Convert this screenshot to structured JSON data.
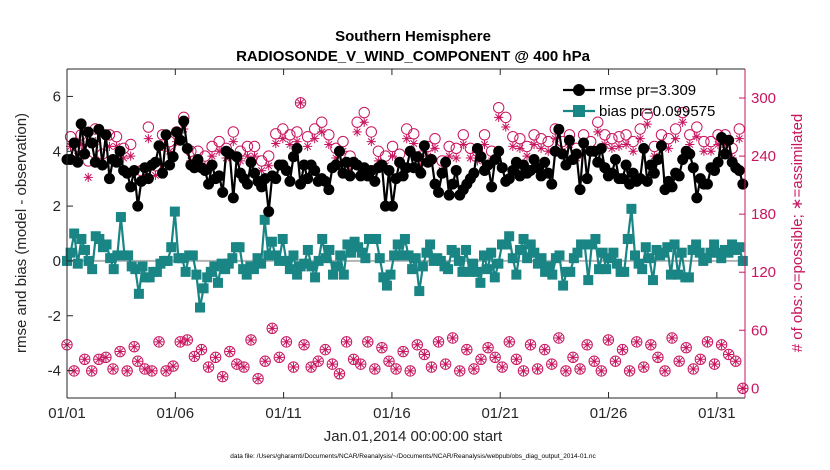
{
  "chart_data": {
    "type": "line",
    "title": "Southern Hemisphere",
    "subtitle": "RADIOSONDE_V_WIND_COMPONENT @ 400 hPa",
    "xlabel": "Jan.01,2014 00:00:00 start",
    "ylabel": "rmse and bias (model - observation)",
    "ylabel_right": "# of obs: o=possible; ∗=assimilated",
    "footnote": "data file: /Users/gharamti/Documents/NCAR/Reanalysis/~/Documents/NCAR/Reanalysis/webpub/obs_diag_output_2014-01.nc",
    "x_ticks": [
      {
        "day": 1,
        "label": "01/01"
      },
      {
        "day": 6,
        "label": "01/06"
      },
      {
        "day": 11,
        "label": "01/11"
      },
      {
        "day": 16,
        "label": "01/16"
      },
      {
        "day": 21,
        "label": "01/21"
      },
      {
        "day": 26,
        "label": "01/26"
      },
      {
        "day": 31,
        "label": "01/31"
      }
    ],
    "xlim": [
      1,
      32.3
    ],
    "ylim": [
      -5,
      7
    ],
    "y_ticks": [
      "-4",
      "-2",
      "0",
      "2",
      "4",
      "6"
    ],
    "ylim_right": [
      -10,
      330
    ],
    "y_ticks_right": [
      "0",
      "60",
      "120",
      "180",
      "240",
      "300"
    ],
    "grid": false,
    "legend_position": "top-right",
    "colors": {
      "rmse": "#000000",
      "bias": "#1a8585",
      "obs": "#c8155f",
      "zero_line": "#b3b3b3"
    },
    "series": [
      {
        "name": "rmse pr=3.309",
        "key": "rmse",
        "marker": "circle",
        "values": [
          3.7,
          3.7,
          4.3,
          3.6,
          5.0,
          3.9,
          4.7,
          4.3,
          3.6,
          4.8,
          3.5,
          4.6,
          3.0,
          3.7,
          3.6,
          4.0,
          3.3,
          3.2,
          2.7,
          3.3,
          2.0,
          2.9,
          3.4,
          3.0,
          3.5,
          3.6,
          4.2,
          3.2,
          4.6,
          3.5,
          3.8,
          4.7,
          4.4,
          5.1,
          4.1,
          3.5,
          3.4,
          3.7,
          3.4,
          3.3,
          2.8,
          3.5,
          3.0,
          3.1,
          2.5,
          4.0,
          3.9,
          2.3,
          3.8,
          3.2,
          3.0,
          2.8,
          3.6,
          3.2,
          2.9,
          2.7,
          3.0,
          1.8,
          3.1,
          3.0,
          3.5,
          3.5,
          3.3,
          2.9,
          3.8,
          4.1,
          2.8,
          3.5,
          3.0,
          3.5,
          3.3,
          2.9,
          3.0,
          2.9,
          2.6,
          3.4,
          3.5,
          4.0,
          3.2,
          3.6,
          3.1,
          3.6,
          3.5,
          3.1,
          3.4,
          3.1,
          3.3,
          2.9,
          3.4,
          3.5,
          2.0,
          3.3,
          2.0,
          3.0,
          3.6,
          3.1,
          3.4,
          4.0,
          3.4,
          3.8,
          3.2,
          4.2,
          3.6,
          3.7,
          2.8,
          2.5,
          3.2,
          3.6,
          2.4,
          2.8,
          3.3,
          2.4,
          2.6,
          2.8,
          3.0,
          3.2,
          4.1,
          3.8,
          3.3,
          3.5,
          2.7,
          3.7,
          4.0,
          3.4,
          2.9,
          3.0,
          3.3,
          3.6,
          3.1,
          3.5,
          3.2,
          3.3,
          3.7,
          3.4,
          3.1,
          3.6,
          3.2,
          2.8,
          4.0,
          4.8,
          3.9,
          3.5,
          4.4,
          3.7,
          3.9,
          2.6,
          4.3,
          3.0,
          4.0,
          4.0,
          3.6,
          4.1,
          3.4,
          3.1,
          3.2,
          3.7,
          3.0,
          3.0,
          3.5,
          2.8,
          3.2,
          2.9,
          3.0,
          4.1,
          2.9,
          3.5,
          3.2,
          3.7,
          4.2,
          2.6,
          2.9,
          2.7,
          3.2,
          3.1,
          3.7,
          4.0,
          3.9,
          3.4,
          2.3,
          3.0,
          2.8,
          2.8,
          3.4,
          3.3,
          3.6,
          4.5,
          3.9,
          4.4,
          3.6,
          3.4,
          3.3,
          2.8
        ]
      },
      {
        "name": "bias pr=0.099575",
        "key": "bias",
        "marker": "square",
        "values": [
          0.0,
          0.3,
          1.0,
          -0.1,
          0.8,
          0.4,
          0.0,
          -0.3,
          0.9,
          0.8,
          0.5,
          0.6,
          0.1,
          -0.3,
          0.2,
          1.6,
          0.2,
          0.2,
          -0.2,
          -0.3,
          -1.2,
          -0.2,
          -0.6,
          -0.6,
          -0.4,
          -0.4,
          -0.1,
          0.0,
          0.0,
          0.5,
          1.8,
          0.1,
          0.1,
          -0.4,
          0.2,
          0.2,
          -0.5,
          -1.7,
          -1.0,
          -0.6,
          -0.4,
          -0.2,
          -0.8,
          -0.1,
          -0.3,
          -0.1,
          0.1,
          0.5,
          0.5,
          -0.3,
          -0.5,
          -0.2,
          -0.3,
          0.1,
          -0.1,
          1.5,
          0.2,
          0.7,
          0.2,
          0.0,
          0.8,
          0.0,
          -0.3,
          0.2,
          -0.5,
          -0.2,
          -0.1,
          0.4,
          -0.2,
          -0.6,
          0.0,
          0.8,
          0.1,
          0.4,
          -0.5,
          -0.2,
          0.2,
          -0.5,
          0.6,
          0.3,
          0.7,
          0.5,
          0.3,
          0.1,
          0.8,
          0.8,
          0.8,
          0.1,
          -0.6,
          -0.9,
          -0.5,
          0.2,
          0.6,
          0.2,
          0.8,
          0.2,
          -0.3,
          0.1,
          -1.1,
          -0.2,
          0.3,
          0.6,
          0.0,
          0.1,
          0.0,
          -0.2,
          -0.3,
          0.4,
          0.3,
          0.0,
          -0.4,
          0.4,
          -0.4,
          -0.1,
          -0.4,
          -0.8,
          0.2,
          -0.3,
          0.3,
          -0.6,
          -0.1,
          0.6,
          0.6,
          0.9,
          0.1,
          -0.5,
          0.4,
          0.8,
          0.1,
          0.6,
          0.3,
          -0.1,
          0.1,
          -0.4,
          -0.2,
          -0.5,
          0.1,
          0.2,
          -0.9,
          -0.4,
          -0.4,
          0.1,
          0.3,
          0.6,
          0.6,
          -0.7,
          0.6,
          0.8,
          -0.3,
          0.3,
          -0.3,
          0.1,
          0.3,
          -0.1,
          -0.4,
          -0.4,
          0.8,
          1.9,
          0.2,
          -0.1,
          -0.3,
          0.5,
          0.1,
          -0.7,
          0.4,
          0.2,
          0.3,
          0.5,
          -0.5,
          0.6,
          -0.5,
          0.3,
          -0.6,
          -0.6,
          0.4,
          0.6,
          0.3,
          0.0,
          0.1,
          0.3,
          0.6,
          0.3,
          0.1,
          0.4,
          0.3,
          0.6,
          0.4,
          0.5,
          0.0
        ]
      },
      {
        "name": "obs possible",
        "key": "obs_possible",
        "marker": "open-circle",
        "axis": "right",
        "values": [
          45,
          260,
          18,
          250,
          262,
          30,
          235,
          18,
          268,
          30,
          242,
          32,
          262,
          20,
          260,
          38,
          248,
          18,
          252,
          43,
          28,
          225,
          20,
          270,
          18,
          230,
          48,
          262,
          18,
          255,
          23,
          265,
          48,
          280,
          50,
          245,
          33,
          245,
          40,
          240,
          22,
          250,
          32,
          255,
          12,
          248,
          38,
          265,
          25,
          245,
          22,
          250,
          50,
          250,
          10,
          235,
          28,
          240,
          62,
          263,
          32,
          268,
          48,
          262,
          22,
          265,
          295,
          45,
          260,
          22,
          268,
          28,
          275,
          40,
          262,
          25,
          248,
          15,
          255,
          48,
          240,
          30,
          275,
          25,
          285,
          48,
          265,
          20,
          245,
          42,
          240,
          28,
          250,
          20,
          242,
          38,
          268,
          18,
          263,
          45,
          240,
          35,
          250,
          22,
          258,
          48,
          235,
          25,
          250,
          52,
          248,
          18,
          262,
          40,
          248,
          20,
          245,
          30,
          262,
          42,
          245,
          32,
          290,
          22,
          280,
          48,
          260,
          30,
          258,
          18,
          250,
          45,
          262,
          20,
          258,
          40,
          255,
          25,
          268,
          52,
          255,
          18,
          262,
          32,
          248,
          20,
          262,
          45,
          255,
          28,
          275,
          18,
          262,
          50,
          258,
          28,
          260,
          40,
          262,
          18,
          255,
          48,
          268,
          22,
          283,
          45,
          250,
          32,
          262,
          18,
          258,
          52,
          268,
          28,
          285,
          42,
          262,
          20,
          270,
          30,
          255,
          48,
          255,
          25,
          262,
          45,
          262,
          35,
          248,
          28,
          268,
          0
        ]
      },
      {
        "name": "obs assimilated",
        "key": "obs_assimilated",
        "marker": "asterisk",
        "axis": "right",
        "values": [
          45,
          250,
          18,
          240,
          252,
          30,
          218,
          18,
          255,
          30,
          232,
          32,
          250,
          20,
          250,
          38,
          238,
          18,
          240,
          43,
          28,
          215,
          20,
          258,
          18,
          220,
          48,
          250,
          18,
          245,
          23,
          255,
          48,
          268,
          50,
          235,
          33,
          235,
          40,
          230,
          22,
          240,
          32,
          245,
          12,
          238,
          38,
          255,
          25,
          235,
          22,
          240,
          50,
          240,
          10,
          225,
          28,
          230,
          62,
          253,
          32,
          258,
          48,
          252,
          22,
          255,
          295,
          45,
          250,
          22,
          258,
          28,
          265,
          40,
          252,
          25,
          238,
          15,
          245,
          48,
          230,
          30,
          265,
          25,
          275,
          48,
          255,
          20,
          235,
          42,
          230,
          28,
          240,
          20,
          232,
          38,
          258,
          18,
          253,
          45,
          230,
          35,
          240,
          22,
          248,
          48,
          225,
          25,
          240,
          52,
          238,
          18,
          252,
          40,
          238,
          20,
          235,
          30,
          252,
          42,
          235,
          32,
          280,
          22,
          270,
          48,
          250,
          30,
          248,
          18,
          240,
          45,
          252,
          20,
          248,
          40,
          245,
          25,
          258,
          52,
          245,
          18,
          252,
          32,
          238,
          20,
          252,
          45,
          245,
          28,
          265,
          18,
          252,
          50,
          248,
          28,
          250,
          40,
          252,
          18,
          245,
          48,
          258,
          22,
          273,
          45,
          240,
          32,
          252,
          18,
          248,
          52,
          258,
          28,
          275,
          42,
          252,
          20,
          260,
          30,
          245,
          48,
          245,
          25,
          252,
          45,
          252,
          35,
          238,
          28,
          258,
          0
        ]
      }
    ]
  }
}
